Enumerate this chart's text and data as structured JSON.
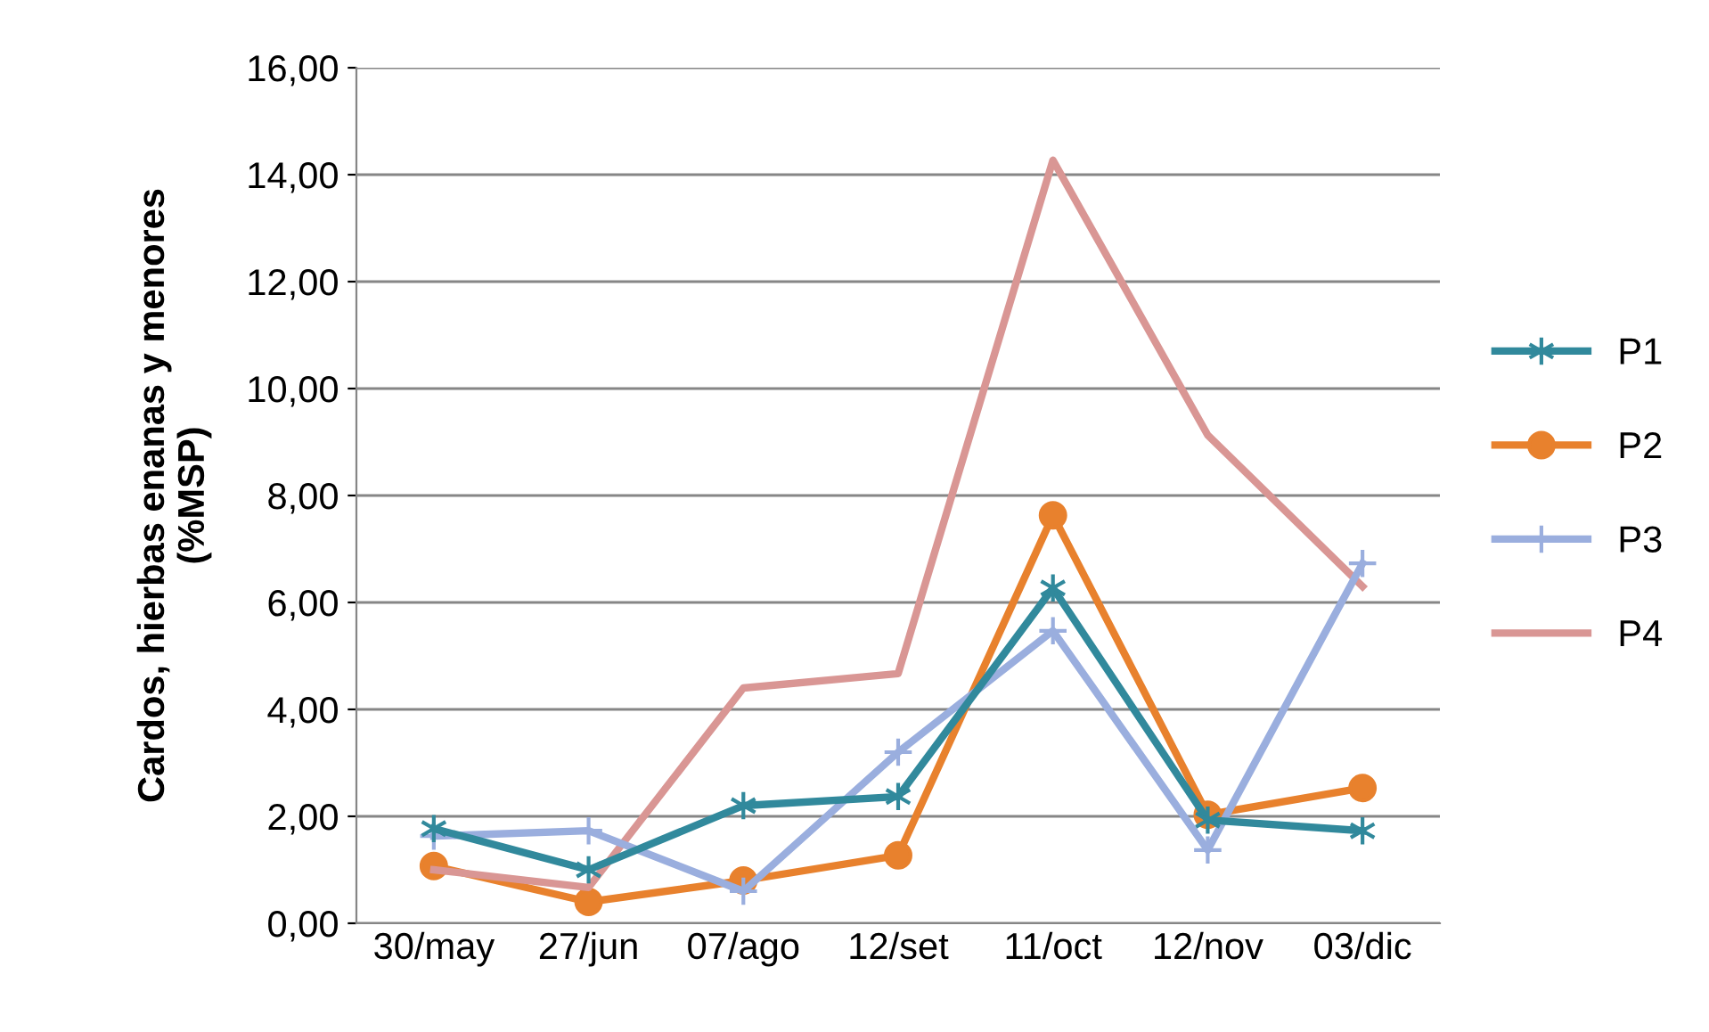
{
  "chart_data": {
    "type": "line",
    "ylabel": "Cardos, hierbas enanas y menores\n(%MSP)",
    "categories": [
      "30/may",
      "27/jun",
      "07/ago",
      "12/set",
      "11/oct",
      "12/nov",
      "03/dic"
    ],
    "series": [
      {
        "name": "P1",
        "color": "#31899c",
        "marker": "cross",
        "values": [
          1.77,
          1.0,
          2.2,
          2.37,
          6.27,
          1.93,
          1.73
        ]
      },
      {
        "name": "P2",
        "color": "#e8812d",
        "marker": "circle",
        "values": [
          1.07,
          0.4,
          0.8,
          1.27,
          7.63,
          2.03,
          2.53
        ]
      },
      {
        "name": "P3",
        "color": "#9aaede",
        "marker": "cross",
        "values": [
          1.63,
          1.73,
          0.6,
          3.2,
          5.47,
          1.37,
          6.73
        ]
      },
      {
        "name": "P4",
        "color": "#d99694",
        "marker": "none",
        "values": [
          1.0,
          0.67,
          4.4,
          4.67,
          14.27,
          9.13,
          6.3
        ]
      }
    ],
    "ylim": [
      0,
      16
    ],
    "yticks": [
      {
        "value": 0,
        "label": "0,00"
      },
      {
        "value": 2,
        "label": "2,00"
      },
      {
        "value": 4,
        "label": "4,00"
      },
      {
        "value": 6,
        "label": "6,00"
      },
      {
        "value": 8,
        "label": "8,00"
      },
      {
        "value": 10,
        "label": "10,00"
      },
      {
        "value": 12,
        "label": "12,00"
      },
      {
        "value": 14,
        "label": "14,00"
      },
      {
        "value": 16,
        "label": "16,00"
      }
    ],
    "grid": "y",
    "legend": "right",
    "line_style": "solid"
  }
}
